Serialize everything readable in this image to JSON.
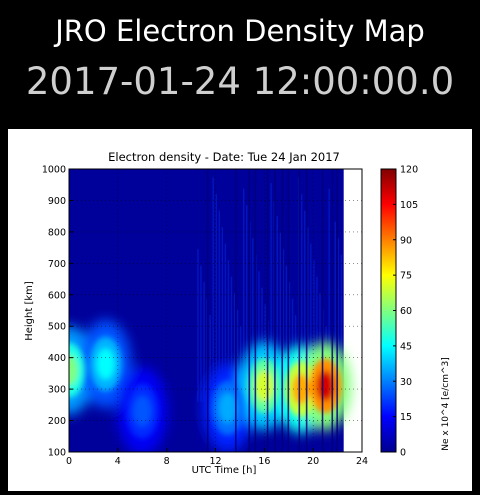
{
  "app": {
    "title": "JRO Electron Density Map",
    "timestamp": "2017-01-24 12:00:00.0"
  },
  "chart_data": {
    "type": "heatmap",
    "title": "Electron density - Date: Tue 24 Jan 2017",
    "xlabel": "UTC Time [h]",
    "ylabel": "Height [km]",
    "xlim": [
      0,
      24
    ],
    "ylim": [
      100,
      1000
    ],
    "xticks": [
      "0",
      "4",
      "8",
      "12",
      "16",
      "20",
      "24"
    ],
    "yticks": [
      "100",
      "200",
      "300",
      "400",
      "500",
      "600",
      "700",
      "800",
      "900",
      "1000"
    ],
    "data_extent_hours": [
      0,
      22.5
    ],
    "grid": true,
    "colorbar": {
      "label": "Ne x 10^4 [e/cm^3]",
      "range": [
        0,
        120
      ],
      "ticks": [
        "0",
        "15",
        "30",
        "45",
        "60",
        "75",
        "90",
        "105",
        "120"
      ],
      "colormap": "jet"
    },
    "features": [
      {
        "time_h": 0,
        "height_km": 360,
        "ne": 60
      },
      {
        "time_h": 3,
        "height_km": 380,
        "ne": 45
      },
      {
        "time_h": 6,
        "height_km": 230,
        "ne": 25
      },
      {
        "time_h": 13,
        "height_km": 240,
        "ne": 35
      },
      {
        "time_h": 16,
        "height_km": 310,
        "ne": 70
      },
      {
        "time_h": 19,
        "height_km": 300,
        "ne": 85
      },
      {
        "time_h": 21,
        "height_km": 310,
        "ne": 110
      }
    ],
    "vertical_streak_hours": [
      11.3,
      13.6,
      14.7,
      15.2,
      16.2,
      16.8,
      17.4,
      17.9,
      18.8,
      19.4,
      20.7,
      21.5,
      21.9
    ]
  }
}
